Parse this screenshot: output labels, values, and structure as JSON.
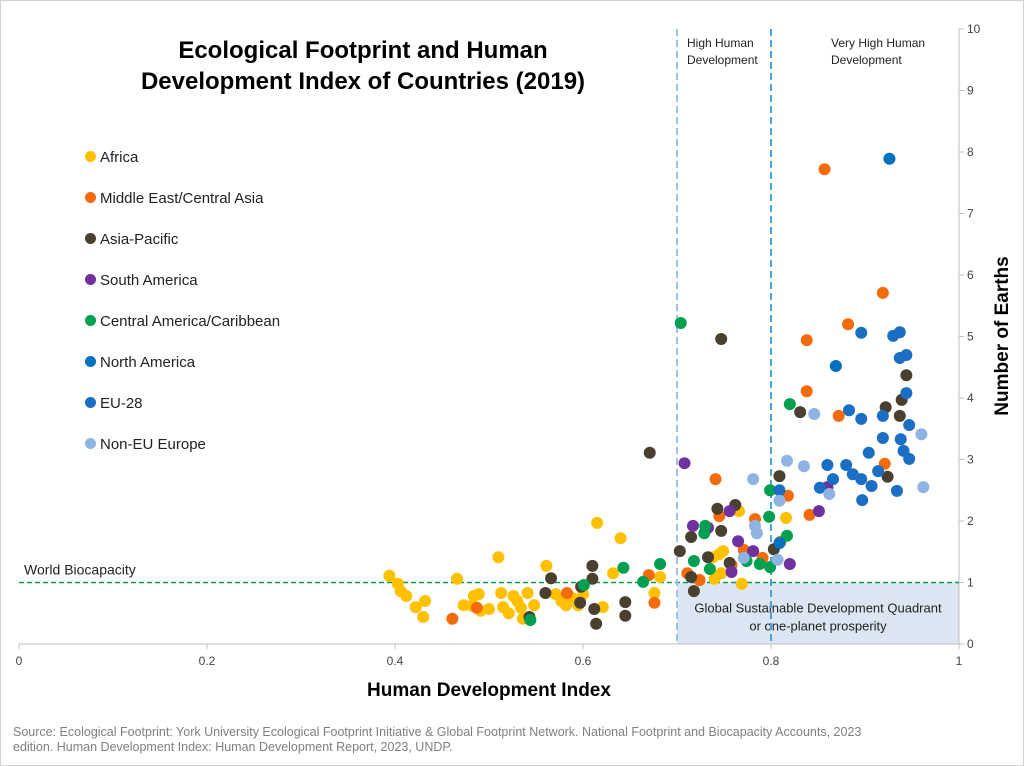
{
  "chart_data": {
    "type": "scatter",
    "title": "Ecological Footprint and Human Development Index of Countries (2019)",
    "x_label": "Human Development Index",
    "y_label": "Number of Earths",
    "xlim": [
      0,
      1
    ],
    "ylim": [
      0,
      10
    ],
    "xticks": [
      0,
      0.2,
      0.4,
      0.6,
      0.8,
      1
    ],
    "yticks": [
      0,
      1,
      2,
      3,
      4,
      5,
      6,
      7,
      8,
      9,
      10
    ],
    "source": "Source: Ecological Footprint: York University Ecological Footprint Initiative & Global Footprint Network. National Footprint and Biocapacity Accounts, 2023 edition.  Human Development Index: Human Development Report, 2023, UNDP.",
    "hlines": [
      {
        "value": 1,
        "label": "World Biocapacity",
        "color": "#00a050"
      }
    ],
    "vlines": [
      {
        "value": 0.7,
        "label": [
          "High Human",
          "Development"
        ],
        "color": "#9dc3e6"
      },
      {
        "value": 0.8,
        "label": [
          "Very High Human",
          "Development"
        ],
        "color": "#4ba3d8"
      }
    ],
    "quadrant": {
      "x": [
        0.7,
        1
      ],
      "y": [
        0,
        1
      ],
      "label": [
        "Global Sustainable Development Quadrant",
        "or  one-planet prosperity"
      ],
      "color": "#dce6f2"
    },
    "series": [
      {
        "name": "Africa",
        "color": "#ffc000",
        "x": [
          0.394,
          0.403,
          0.406,
          0.412,
          0.432,
          0.422,
          0.43,
          0.466,
          0.473,
          0.482,
          0.484,
          0.489,
          0.491,
          0.5,
          0.51,
          0.513,
          0.515,
          0.521,
          0.526,
          0.53,
          0.534,
          0.536,
          0.541,
          0.548,
          0.561,
          0.571,
          0.577,
          0.582,
          0.588,
          0.595,
          0.6,
          0.615,
          0.621,
          0.632,
          0.64,
          0.676,
          0.682,
          0.738,
          0.747,
          0.749,
          0.766,
          0.74,
          0.816,
          0.769,
          0.745
        ],
        "values": [
          1.11,
          0.98,
          0.86,
          0.78,
          0.7,
          0.6,
          0.44,
          1.06,
          0.63,
          0.62,
          0.78,
          0.81,
          0.54,
          0.57,
          1.41,
          0.83,
          0.6,
          0.5,
          0.78,
          0.7,
          0.59,
          0.41,
          0.83,
          0.63,
          1.27,
          0.81,
          0.7,
          0.63,
          0.75,
          0.63,
          0.81,
          1.97,
          0.6,
          1.15,
          1.72,
          0.83,
          1.09,
          1.41,
          1.15,
          1.51,
          2.16,
          1.06,
          2.05,
          0.98,
          1.46
        ]
      },
      {
        "name": "Middle East/Central Asia",
        "color": "#f46b0c",
        "x": [
          0.461,
          0.487,
          0.583,
          0.676,
          0.67,
          0.711,
          0.741,
          0.745,
          0.783,
          0.791,
          0.81,
          0.818,
          0.838,
          0.838,
          0.841,
          0.857,
          0.872,
          0.882,
          0.919,
          0.921,
          0.771,
          0.758,
          0.724
        ],
        "values": [
          0.41,
          0.59,
          0.83,
          0.67,
          1.12,
          1.15,
          2.68,
          2.08,
          2.03,
          1.4,
          1.66,
          2.41,
          4.11,
          4.94,
          2.1,
          7.72,
          3.71,
          5.2,
          5.71,
          2.93,
          1.53,
          1.28,
          1.04
        ]
      },
      {
        "name": "Asia-Pacific",
        "color": "#4a4030",
        "x": [
          0.543,
          0.56,
          0.566,
          0.597,
          0.598,
          0.61,
          0.61,
          0.614,
          0.612,
          0.645,
          0.645,
          0.671,
          0.703,
          0.715,
          0.718,
          0.715,
          0.747,
          0.743,
          0.747,
          0.762,
          0.809,
          0.803,
          0.831,
          0.922,
          0.924,
          0.939,
          0.937,
          0.944,
          0.733,
          0.756
        ],
        "values": [
          0.44,
          0.83,
          1.07,
          0.67,
          0.93,
          1.27,
          1.06,
          0.33,
          0.57,
          0.68,
          0.46,
          3.11,
          1.51,
          1.09,
          0.86,
          1.74,
          4.96,
          2.2,
          1.84,
          2.26,
          2.73,
          1.54,
          3.77,
          3.85,
          2.72,
          3.97,
          3.71,
          4.37,
          1.41,
          1.32
        ]
      },
      {
        "name": "South America",
        "color": "#7030a0",
        "x": [
          0.708,
          0.717,
          0.733,
          0.765,
          0.758,
          0.781,
          0.82,
          0.851,
          0.86,
          0.756
        ],
        "values": [
          2.94,
          1.92,
          1.89,
          1.67,
          1.17,
          1.51,
          1.3,
          2.16,
          2.55,
          2.16
        ]
      },
      {
        "name": "Central America/Caribbean",
        "color": "#00a050",
        "x": [
          0.704,
          0.544,
          0.601,
          0.643,
          0.664,
          0.682,
          0.718,
          0.73,
          0.735,
          0.774,
          0.788,
          0.799,
          0.798,
          0.817,
          0.82,
          0.799,
          0.729
        ],
        "values": [
          5.22,
          0.39,
          0.96,
          1.24,
          1.01,
          1.3,
          1.35,
          1.92,
          1.22,
          1.35,
          1.3,
          2.5,
          2.07,
          1.76,
          3.9,
          1.25,
          1.8
        ]
      },
      {
        "name": "North America",
        "color": "#0070c0",
        "x": [
          0.926,
          0.869,
          0.809
        ],
        "values": [
          7.89,
          4.52,
          1.64
        ]
      },
      {
        "name": "EU-28",
        "color": "#1a6ec4",
        "x": [
          0.896,
          0.93,
          0.937,
          0.937,
          0.944,
          0.944,
          0.883,
          0.896,
          0.919,
          0.947,
          0.919,
          0.938,
          0.904,
          0.941,
          0.947,
          0.88,
          0.86,
          0.887,
          0.914,
          0.896,
          0.866,
          0.907,
          0.852,
          0.897,
          0.934,
          0.809
        ],
        "values": [
          5.06,
          5.01,
          5.07,
          4.65,
          4.7,
          4.08,
          3.8,
          3.66,
          3.71,
          3.56,
          3.35,
          3.33,
          3.11,
          3.14,
          3.01,
          2.91,
          2.91,
          2.76,
          2.81,
          2.68,
          2.68,
          2.57,
          2.54,
          2.34,
          2.49,
          2.5
        ]
      },
      {
        "name": "Non-EU Europe",
        "color": "#8db4e2",
        "x": [
          0.846,
          0.835,
          0.817,
          0.781,
          0.809,
          0.783,
          0.785,
          0.807,
          0.771,
          0.862,
          0.96,
          0.962
        ],
        "values": [
          3.74,
          2.89,
          2.98,
          2.68,
          2.33,
          1.92,
          1.8,
          1.37,
          1.4,
          2.44,
          3.41,
          2.55
        ]
      }
    ]
  }
}
